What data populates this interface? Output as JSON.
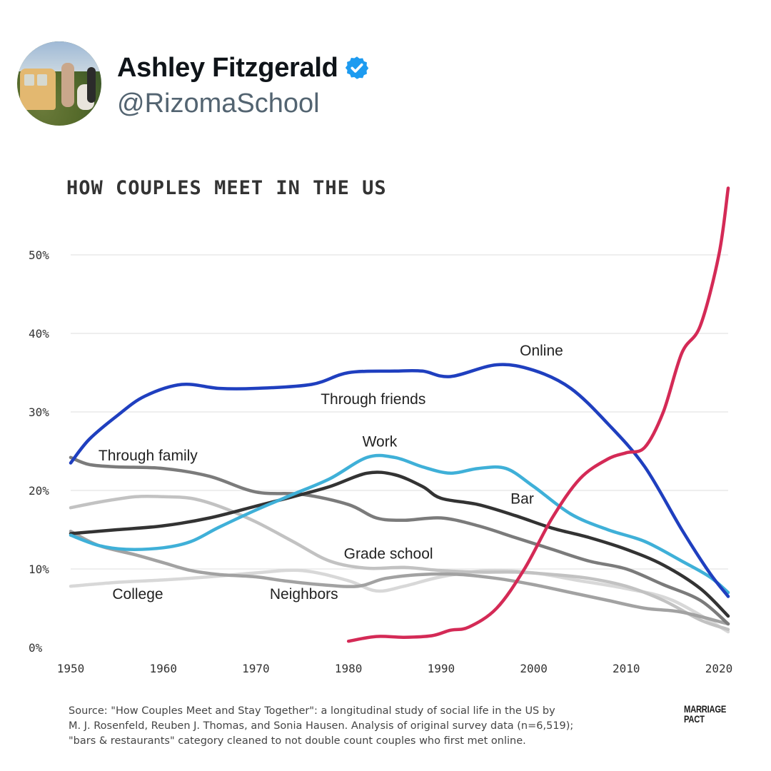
{
  "post": {
    "author_name": "Ashley Fitzgerald",
    "author_handle": "@RizomaSchool",
    "verified_icon": "verified-badge-icon",
    "verified_color": "#1d9bf0"
  },
  "source_lines": [
    "Source: \"How Couples Meet and Stay Together\": a longitudinal study of social life in the US by",
    "M. J. Rosenfeld, Reuben J. Thomas, and Sonia Hausen. Analysis of original survey data (n=6,519);",
    "\"bars & restaurants\" category cleaned to not double count couples who first met online."
  ],
  "brand_lines": [
    "MARRIAGE",
    "PACT"
  ],
  "chart_data": {
    "type": "line",
    "title": "HOW COUPLES MEET IN THE US",
    "xlabel": "",
    "ylabel": "",
    "xlim": [
      1950,
      2021
    ],
    "ylim": [
      0,
      50
    ],
    "x_ticks": [
      1950,
      1960,
      1970,
      1980,
      1990,
      2000,
      2010,
      2020
    ],
    "y_ticks": [
      0,
      10,
      20,
      30,
      40,
      50
    ],
    "y_tick_labels": [
      "0%",
      "10%",
      "20%",
      "30%",
      "40%",
      "50%"
    ],
    "grid": "horizontal",
    "legend": "inline labels",
    "series": [
      {
        "name": "Through friends",
        "color": "#1f3fbf",
        "width": 4.5,
        "label_at": [
          1977,
          31
        ],
        "line_x": [
          1950,
          1952,
          1955,
          1958,
          1962,
          1966,
          1970,
          1976,
          1980,
          1985,
          1988,
          1991,
          1996,
          2000,
          2004,
          2008,
          2012,
          2016,
          2019,
          2021
        ],
        "line_y": [
          23.5,
          26.5,
          29.5,
          32,
          33.5,
          33,
          33,
          33.5,
          35,
          35.2,
          35.2,
          34.5,
          36,
          35.3,
          33,
          28.5,
          23,
          15,
          9.5,
          6.5
        ]
      },
      {
        "name": "Online",
        "color": "#d42a56",
        "width": 4.5,
        "label_at": [
          1998.5,
          37.2
        ],
        "line_x": [
          1980,
          1983,
          1986,
          1989,
          1991,
          1993,
          1996,
          1999,
          2002,
          2005,
          2008,
          2010,
          2012,
          2014,
          2016,
          2018,
          2020,
          2021
        ],
        "line_y": [
          0.8,
          1.4,
          1.3,
          1.5,
          2.2,
          2.6,
          5,
          10,
          16.5,
          21.5,
          24,
          24.8,
          25.5,
          30,
          37.5,
          41,
          50,
          58.5
        ]
      },
      {
        "name": "Through family",
        "color": "#7b7b7b",
        "width": 4.5,
        "label_at": [
          1953,
          23.8
        ],
        "line_x": [
          1950,
          1952,
          1955,
          1960,
          1965,
          1970,
          1975,
          1980,
          1983,
          1986,
          1990,
          1994,
          1998,
          2002,
          2006,
          2010,
          2014,
          2018,
          2021
        ],
        "line_y": [
          24.2,
          23.3,
          23,
          22.8,
          21.8,
          19.8,
          19.5,
          18.2,
          16.5,
          16.2,
          16.5,
          15.5,
          14,
          12.5,
          11,
          10,
          8,
          6,
          3
        ]
      },
      {
        "name": "Work",
        "color": "#3fb0d8",
        "width": 4.5,
        "label_at": [
          1981.5,
          25.6
        ],
        "line_x": [
          1950,
          1953,
          1956,
          1960,
          1963,
          1966,
          1970,
          1974,
          1978,
          1982,
          1985,
          1988,
          1991,
          1994,
          1997,
          2000,
          2004,
          2008,
          2012,
          2016,
          2019,
          2021
        ],
        "line_y": [
          14.3,
          13,
          12.5,
          12.7,
          13.5,
          15.3,
          17.5,
          19.5,
          21.5,
          24.2,
          24.2,
          23,
          22.2,
          22.8,
          22.8,
          20.5,
          17,
          15,
          13.5,
          11,
          9,
          7
        ]
      },
      {
        "name": "Bar",
        "color": "#333333",
        "width": 4.5,
        "label_at": [
          1997.5,
          18.3
        ],
        "line_x": [
          1950,
          1955,
          1960,
          1965,
          1970,
          1974,
          1978,
          1982,
          1985,
          1988,
          1990,
          1994,
          1998,
          2002,
          2006,
          2010,
          2014,
          2018,
          2021
        ],
        "line_y": [
          14.5,
          15,
          15.5,
          16.5,
          18,
          19.2,
          20.5,
          22.2,
          22,
          20.5,
          19,
          18.2,
          16.8,
          15.2,
          14,
          12.5,
          10.5,
          7.5,
          4
        ]
      },
      {
        "name": "Grade school",
        "color": "#c2c2c2",
        "width": 4.5,
        "label_at": [
          1979.5,
          11.3
        ],
        "line_x": [
          1950,
          1953,
          1957,
          1960,
          1963,
          1966,
          1970,
          1974,
          1978,
          1982,
          1986,
          1990,
          1994,
          1998,
          2002,
          2006,
          2010,
          2014,
          2018,
          2021
        ],
        "line_y": [
          17.8,
          18.5,
          19.2,
          19.2,
          19,
          18,
          16,
          13.5,
          11,
          10.1,
          10.2,
          9.8,
          9.6,
          9.6,
          9.3,
          8.8,
          7.8,
          6,
          3.5,
          2.3
        ]
      },
      {
        "name": "College",
        "color": "#d8d8d8",
        "width": 4.5,
        "label_at": [
          1954.5,
          6.2
        ],
        "line_x": [
          1950,
          1955,
          1960,
          1965,
          1970,
          1975,
          1980,
          1983,
          1986,
          1990,
          1995,
          2000,
          2005,
          2010,
          2015,
          2021
        ],
        "line_y": [
          7.8,
          8.3,
          8.6,
          9,
          9.5,
          9.8,
          8.5,
          7.2,
          7.8,
          9,
          9.8,
          9.5,
          8.5,
          7.5,
          6,
          2
        ]
      },
      {
        "name": "Neighbors",
        "color": "#a2a2a2",
        "width": 4.5,
        "label_at": [
          1971.5,
          6.2
        ],
        "line_x": [
          1950,
          1953,
          1957,
          1960,
          1963,
          1966,
          1970,
          1973,
          1977,
          1981,
          1984,
          1988,
          1992,
          1996,
          2000,
          2004,
          2008,
          2012,
          2016,
          2021
        ],
        "line_y": [
          14.8,
          13,
          11.8,
          10.8,
          9.8,
          9.3,
          9,
          8.5,
          8,
          7.8,
          8.8,
          9.3,
          9.3,
          8.8,
          8,
          7,
          6,
          5,
          4.5,
          3
        ]
      }
    ]
  }
}
